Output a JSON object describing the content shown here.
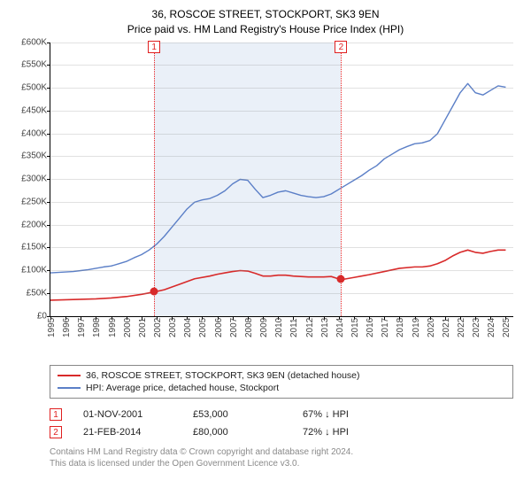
{
  "header": {
    "address": "36, ROSCOE STREET, STOCKPORT, SK3 9EN",
    "subtitle": "Price paid vs. HM Land Registry's House Price Index (HPI)"
  },
  "chart": {
    "type": "line",
    "background_color": "#ffffff",
    "grid_color": "#bfbfbf",
    "text_color": "#444444",
    "x_years": [
      1995,
      1996,
      1997,
      1998,
      1999,
      2000,
      2001,
      2002,
      2003,
      2004,
      2005,
      2006,
      2007,
      2008,
      2009,
      2010,
      2011,
      2012,
      2013,
      2014,
      2015,
      2016,
      2017,
      2018,
      2019,
      2020,
      2021,
      2022,
      2023,
      2024,
      2025
    ],
    "x_domain": [
      1995,
      2025.5
    ],
    "ylim": [
      0,
      600
    ],
    "ytick_step": 50,
    "y_prefix": "£",
    "y_suffix": "K",
    "shade_range_years": [
      2001.83,
      2014.15
    ],
    "shade_color": "rgba(180,200,230,0.28)",
    "series": [
      {
        "id": "hpi",
        "legend": "HPI: Average price, detached house, Stockport",
        "color": "#5b7fc7",
        "width": 1.4,
        "points": [
          [
            1995.0,
            95
          ],
          [
            1995.5,
            96
          ],
          [
            1996.0,
            97
          ],
          [
            1996.5,
            98
          ],
          [
            1997.0,
            100
          ],
          [
            1997.5,
            102
          ],
          [
            1998.0,
            105
          ],
          [
            1998.5,
            108
          ],
          [
            1999.0,
            110
          ],
          [
            1999.5,
            115
          ],
          [
            2000.0,
            120
          ],
          [
            2000.5,
            128
          ],
          [
            2001.0,
            135
          ],
          [
            2001.5,
            145
          ],
          [
            2002.0,
            158
          ],
          [
            2002.5,
            175
          ],
          [
            2003.0,
            195
          ],
          [
            2003.5,
            215
          ],
          [
            2004.0,
            235
          ],
          [
            2004.5,
            250
          ],
          [
            2005.0,
            255
          ],
          [
            2005.5,
            258
          ],
          [
            2006.0,
            265
          ],
          [
            2006.5,
            275
          ],
          [
            2007.0,
            290
          ],
          [
            2007.5,
            300
          ],
          [
            2008.0,
            298
          ],
          [
            2008.5,
            278
          ],
          [
            2009.0,
            260
          ],
          [
            2009.5,
            265
          ],
          [
            2010.0,
            272
          ],
          [
            2010.5,
            275
          ],
          [
            2011.0,
            270
          ],
          [
            2011.5,
            265
          ],
          [
            2012.0,
            262
          ],
          [
            2012.5,
            260
          ],
          [
            2013.0,
            262
          ],
          [
            2013.5,
            268
          ],
          [
            2014.0,
            278
          ],
          [
            2014.5,
            288
          ],
          [
            2015.0,
            298
          ],
          [
            2015.5,
            308
          ],
          [
            2016.0,
            320
          ],
          [
            2016.5,
            330
          ],
          [
            2017.0,
            345
          ],
          [
            2017.5,
            355
          ],
          [
            2018.0,
            365
          ],
          [
            2018.5,
            372
          ],
          [
            2019.0,
            378
          ],
          [
            2019.5,
            380
          ],
          [
            2020.0,
            385
          ],
          [
            2020.5,
            400
          ],
          [
            2021.0,
            430
          ],
          [
            2021.5,
            460
          ],
          [
            2022.0,
            490
          ],
          [
            2022.5,
            510
          ],
          [
            2023.0,
            490
          ],
          [
            2023.5,
            485
          ],
          [
            2024.0,
            495
          ],
          [
            2024.5,
            505
          ],
          [
            2025.0,
            502
          ]
        ]
      },
      {
        "id": "price",
        "legend": "36, ROSCOE STREET, STOCKPORT, SK3 9EN (detached house)",
        "color": "#d82a2a",
        "width": 1.6,
        "points": [
          [
            1995.0,
            35
          ],
          [
            1996.0,
            36
          ],
          [
            1997.0,
            37
          ],
          [
            1998.0,
            38
          ],
          [
            1999.0,
            40
          ],
          [
            2000.0,
            43
          ],
          [
            2001.0,
            48
          ],
          [
            2001.83,
            53
          ],
          [
            2002.5,
            58
          ],
          [
            2003.5,
            70
          ],
          [
            2004.5,
            82
          ],
          [
            2005.5,
            88
          ],
          [
            2006.0,
            92
          ],
          [
            2006.5,
            95
          ],
          [
            2007.0,
            98
          ],
          [
            2007.5,
            100
          ],
          [
            2008.0,
            99
          ],
          [
            2008.5,
            94
          ],
          [
            2009.0,
            88
          ],
          [
            2009.5,
            88
          ],
          [
            2010.0,
            90
          ],
          [
            2010.5,
            90
          ],
          [
            2011.0,
            88
          ],
          [
            2012.0,
            86
          ],
          [
            2013.0,
            86
          ],
          [
            2013.5,
            87
          ],
          [
            2014.15,
            80
          ],
          [
            2014.5,
            82
          ],
          [
            2015.0,
            85
          ],
          [
            2015.5,
            88
          ],
          [
            2016.0,
            91
          ],
          [
            2017.0,
            98
          ],
          [
            2018.0,
            105
          ],
          [
            2019.0,
            108
          ],
          [
            2019.5,
            108
          ],
          [
            2020.0,
            110
          ],
          [
            2020.5,
            115
          ],
          [
            2021.0,
            122
          ],
          [
            2021.5,
            132
          ],
          [
            2022.0,
            140
          ],
          [
            2022.5,
            145
          ],
          [
            2023.0,
            140
          ],
          [
            2023.5,
            138
          ],
          [
            2024.0,
            142
          ],
          [
            2024.5,
            145
          ],
          [
            2025.0,
            145
          ]
        ]
      }
    ],
    "events": [
      {
        "n": "1",
        "year": 2001.83,
        "value": 53,
        "color": "#d82a2a"
      },
      {
        "n": "2",
        "year": 2014.15,
        "value": 80,
        "color": "#d82a2a"
      }
    ]
  },
  "legend_order": [
    "price",
    "hpi"
  ],
  "events_table": {
    "rows": [
      {
        "n": "1",
        "date": "01-NOV-2001",
        "amount": "£53,000",
        "pct": "67%",
        "arrow": "↓",
        "suffix": "HPI"
      },
      {
        "n": "2",
        "date": "21-FEB-2014",
        "amount": "£80,000",
        "pct": "72%",
        "arrow": "↓",
        "suffix": "HPI"
      }
    ]
  },
  "credits": {
    "line1": "Contains HM Land Registry data © Crown copyright and database right 2024.",
    "line2": "This data is licensed under the Open Government Licence v3.0."
  }
}
